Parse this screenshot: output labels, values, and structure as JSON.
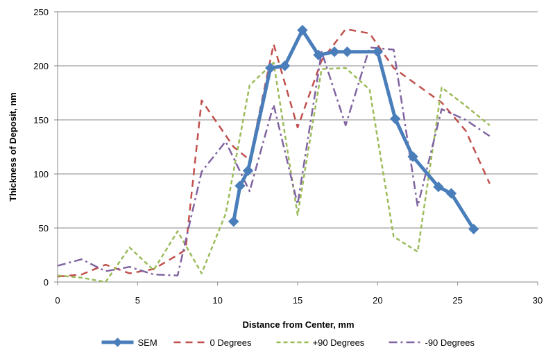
{
  "chart_data": {
    "type": "line",
    "title": "",
    "xlabel": "Distance from Center, mm",
    "ylabel": "Thickness of Deposit, nm",
    "xlim": [
      0,
      30
    ],
    "ylim": [
      0,
      250
    ],
    "xticks": [
      0,
      5,
      10,
      15,
      20,
      25,
      30
    ],
    "yticks": [
      0,
      50,
      100,
      150,
      200,
      250
    ],
    "grid": "horizontal",
    "legend_position": "bottom",
    "series": [
      {
        "name": "SEM",
        "color": "#4a7ebb",
        "style": "solid-thick-diamond",
        "x": [
          11.0,
          11.4,
          11.9,
          13.3,
          14.2,
          15.3,
          16.3,
          17.3,
          18.1,
          20.0,
          21.1,
          22.2,
          23.8,
          24.6,
          26.0
        ],
        "y": [
          56,
          89,
          103,
          198,
          200,
          233,
          210,
          213,
          213,
          213,
          151,
          116,
          88,
          82,
          49
        ]
      },
      {
        "name": "0 Degrees",
        "color": "#c0504d",
        "style": "dashed",
        "x": [
          0,
          1.5,
          3,
          4.5,
          6,
          7.5,
          8,
          9,
          11,
          12,
          13.5,
          15,
          16.5,
          18,
          19.5,
          21,
          22.5,
          24,
          25.5,
          27
        ],
        "y": [
          5,
          7,
          16,
          8,
          12,
          25,
          30,
          168,
          125,
          113,
          220,
          143,
          205,
          234,
          230,
          198,
          182,
          166,
          140,
          91
        ]
      },
      {
        "name": "+90 Degrees",
        "color": "#9bbb59",
        "style": "short-dash",
        "x": [
          0,
          1.5,
          3,
          4.5,
          6,
          7.5,
          9,
          10.5,
          12,
          13.5,
          15,
          16.5,
          18,
          19.5,
          21,
          22.5,
          24,
          25.5,
          27
        ],
        "y": [
          6,
          4,
          0,
          32,
          11,
          47,
          8,
          63,
          182,
          203,
          62,
          197,
          198,
          178,
          42,
          28,
          180,
          163,
          145
        ]
      },
      {
        "name": "-90 Degrees",
        "color": "#8064a2",
        "style": "dash-dot",
        "x": [
          0,
          1.5,
          3,
          4.5,
          6,
          7.5,
          9,
          10.5,
          12,
          13.5,
          15,
          16.5,
          18,
          19.5,
          21,
          22.5,
          24,
          25.5,
          27
        ],
        "y": [
          15,
          21,
          10,
          14,
          7,
          6,
          102,
          130,
          84,
          164,
          72,
          213,
          145,
          217,
          215,
          70,
          160,
          150,
          135
        ]
      }
    ]
  }
}
